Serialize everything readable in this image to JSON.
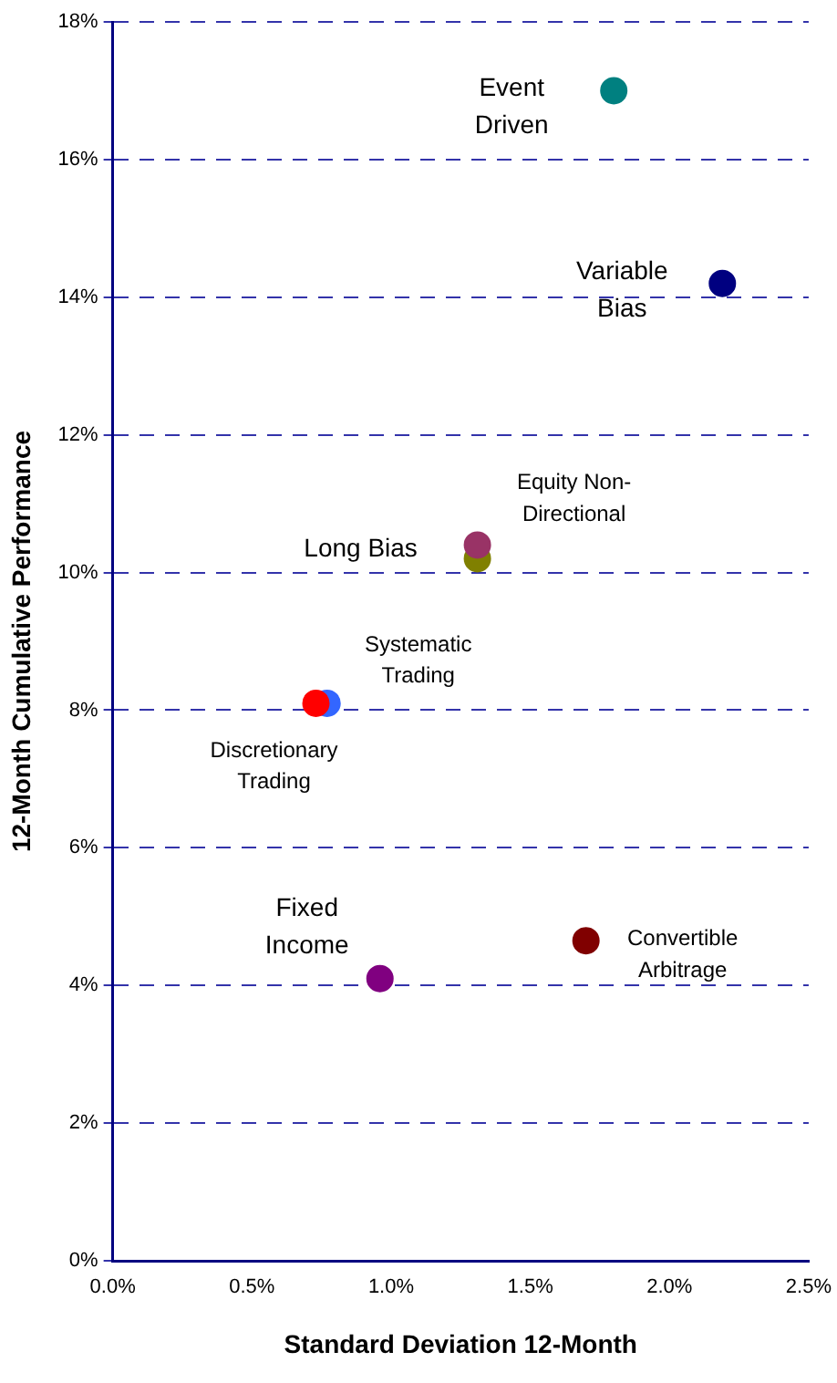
{
  "chart_data": {
    "type": "scatter",
    "xlabel": "Standard Deviation 12-Month",
    "ylabel": "12-Month Cumulative Performance",
    "xlim": [
      0,
      2.5
    ],
    "ylim": [
      0,
      18
    ],
    "xticks": [
      {
        "value": 0,
        "label": "0.0%"
      },
      {
        "value": 0.5,
        "label": "0.5%"
      },
      {
        "value": 1,
        "label": "1.0%"
      },
      {
        "value": 1.5,
        "label": "1.5%"
      },
      {
        "value": 2,
        "label": "2.0%"
      },
      {
        "value": 2.5,
        "label": "2.5%"
      }
    ],
    "yticks": [
      {
        "value": 0,
        "label": "0%"
      },
      {
        "value": 2,
        "label": "2%"
      },
      {
        "value": 4,
        "label": "4%"
      },
      {
        "value": 6,
        "label": "6%"
      },
      {
        "value": 8,
        "label": "8%"
      },
      {
        "value": 10,
        "label": "10%"
      },
      {
        "value": 12,
        "label": "12%"
      },
      {
        "value": 14,
        "label": "14%"
      },
      {
        "value": 16,
        "label": "16%"
      },
      {
        "value": 18,
        "label": "18%"
      }
    ],
    "grid": "y",
    "legend": false,
    "marker": "circle",
    "series": [
      {
        "name": "Event Driven",
        "color": "#008080",
        "x": [
          1.8
        ],
        "values": [
          17.0
        ]
      },
      {
        "name": "Variable Bias",
        "color": "#000080",
        "x": [
          2.19
        ],
        "values": [
          14.2
        ]
      },
      {
        "name": "Equity Non-Directional",
        "color": "#993366",
        "x": [
          1.31
        ],
        "values": [
          10.4
        ]
      },
      {
        "name": "Long Bias",
        "color": "#808000",
        "x": [
          1.31
        ],
        "values": [
          10.2
        ]
      },
      {
        "name": "Discretionary Trading",
        "color": "#ff0000",
        "x": [
          0.73
        ],
        "values": [
          8.1
        ]
      },
      {
        "name": "Systematic Trading",
        "color": "#3366ff",
        "x": [
          0.77
        ],
        "values": [
          8.1
        ]
      },
      {
        "name": "Fixed Income",
        "color": "#800080",
        "x": [
          0.96
        ],
        "values": [
          4.1
        ]
      },
      {
        "name": "Convertible Arbitrage",
        "color": "#800000",
        "x": [
          1.7
        ],
        "values": [
          4.65
        ]
      }
    ]
  }
}
